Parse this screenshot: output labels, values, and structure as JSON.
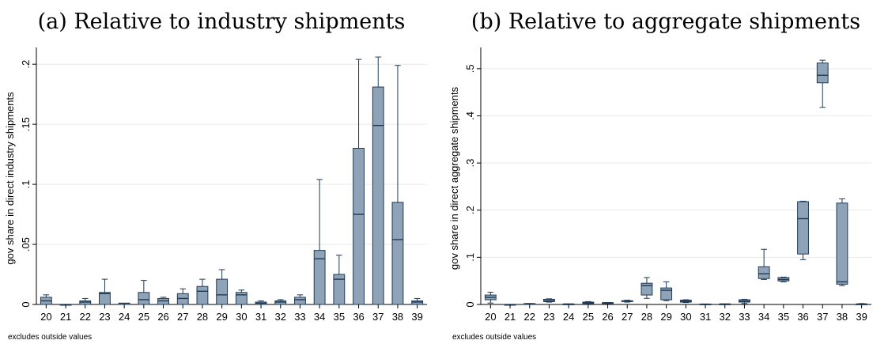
{
  "colors": {
    "box_fill": "#8fa3b8",
    "box_stroke": "#1f3a55",
    "grid": "#e6e9ec",
    "axis": "#000000"
  },
  "chart_data": [
    {
      "type": "box",
      "title": "(a) Relative to industry shipments",
      "xlabel": "",
      "ylabel": "gov share in direct industry shipments",
      "note": "excludes outside values",
      "ylim": [
        0,
        0.21
      ],
      "yticks": [
        0,
        0.05,
        0.1,
        0.15,
        0.2
      ],
      "ytick_labels": [
        "0",
        ".05",
        ".1",
        ".15",
        ".2"
      ],
      "grid": true,
      "categories": [
        "20",
        "21",
        "22",
        "23",
        "24",
        "25",
        "26",
        "27",
        "28",
        "29",
        "30",
        "31",
        "32",
        "33",
        "34",
        "35",
        "36",
        "37",
        "38",
        "39"
      ],
      "boxes": [
        {
          "min": 0,
          "q1": 0,
          "median": 0.003,
          "q3": 0.006,
          "max": 0.008
        },
        {
          "min": 0,
          "q1": 0,
          "median": 0,
          "q3": 0,
          "max": 0
        },
        {
          "min": 0,
          "q1": 0,
          "median": 0.002,
          "q3": 0.003,
          "max": 0.005
        },
        {
          "min": 0,
          "q1": 0,
          "median": 0.009,
          "q3": 0.01,
          "max": 0.021
        },
        {
          "min": 0,
          "q1": 0,
          "median": 0.001,
          "q3": 0.001,
          "max": 0.001
        },
        {
          "min": 0,
          "q1": 0,
          "median": 0.004,
          "q3": 0.01,
          "max": 0.02
        },
        {
          "min": 0,
          "q1": 0,
          "median": 0.003,
          "q3": 0.005,
          "max": 0.006
        },
        {
          "min": 0,
          "q1": 0,
          "median": 0.005,
          "q3": 0.009,
          "max": 0.013
        },
        {
          "min": 0,
          "q1": 0,
          "median": 0.011,
          "q3": 0.015,
          "max": 0.021
        },
        {
          "min": 0,
          "q1": 0,
          "median": 0.008,
          "q3": 0.021,
          "max": 0.029
        },
        {
          "min": 0,
          "q1": 0,
          "median": 0.008,
          "q3": 0.01,
          "max": 0.012
        },
        {
          "min": 0,
          "q1": 0,
          "median": 0.001,
          "q3": 0.002,
          "max": 0.003
        },
        {
          "min": 0,
          "q1": 0,
          "median": 0.002,
          "q3": 0.003,
          "max": 0.004
        },
        {
          "min": 0,
          "q1": 0,
          "median": 0.004,
          "q3": 0.006,
          "max": 0.008
        },
        {
          "min": 0,
          "q1": 0,
          "median": 0.038,
          "q3": 0.045,
          "max": 0.104
        },
        {
          "min": 0,
          "q1": 0,
          "median": 0.021,
          "q3": 0.025,
          "max": 0.041
        },
        {
          "min": 0,
          "q1": 0,
          "median": 0.075,
          "q3": 0.13,
          "max": 0.204
        },
        {
          "min": 0,
          "q1": 0,
          "median": 0.149,
          "q3": 0.181,
          "max": 0.206
        },
        {
          "min": 0,
          "q1": 0,
          "median": 0.054,
          "q3": 0.085,
          "max": 0.199
        },
        {
          "min": 0,
          "q1": 0,
          "median": 0.002,
          "q3": 0.003,
          "max": 0.005
        }
      ]
    },
    {
      "type": "box",
      "title": "(b) Relative to aggregate shipments",
      "xlabel": "",
      "ylabel": "gov share in direct aggregate shipments",
      "note": "excludes outside values",
      "ylim": [
        0,
        0.535
      ],
      "yticks": [
        0,
        0.1,
        0.2,
        0.3,
        0.4,
        0.5
      ],
      "ytick_labels": [
        "0",
        ".1",
        ".2",
        ".3",
        ".4",
        ".5"
      ],
      "grid": true,
      "categories": [
        "20",
        "21",
        "22",
        "23",
        "24",
        "25",
        "26",
        "27",
        "28",
        "29",
        "30",
        "31",
        "32",
        "33",
        "34",
        "35",
        "36",
        "37",
        "38",
        "39"
      ],
      "boxes": [
        {
          "min": 0.003,
          "q1": 0.01,
          "median": 0.015,
          "q3": 0.02,
          "max": 0.026
        },
        {
          "min": 0,
          "q1": 0,
          "median": 0,
          "q3": 0,
          "max": 0
        },
        {
          "min": 0.001,
          "q1": 0.001,
          "median": 0.001,
          "q3": 0.002,
          "max": 0.002
        },
        {
          "min": 0.005,
          "q1": 0.006,
          "median": 0.008,
          "q3": 0.011,
          "max": 0.012
        },
        {
          "min": 0,
          "q1": 0,
          "median": 0.001,
          "q3": 0.001,
          "max": 0.001
        },
        {
          "min": 0.001,
          "q1": 0.002,
          "median": 0.003,
          "q3": 0.005,
          "max": 0.006
        },
        {
          "min": 0.002,
          "q1": 0.002,
          "median": 0.003,
          "q3": 0.004,
          "max": 0.004
        },
        {
          "min": 0.005,
          "q1": 0.006,
          "median": 0.007,
          "q3": 0.008,
          "max": 0.009
        },
        {
          "min": 0.013,
          "q1": 0.02,
          "median": 0.04,
          "q3": 0.045,
          "max": 0.057
        },
        {
          "min": 0.008,
          "q1": 0.01,
          "median": 0.03,
          "q3": 0.035,
          "max": 0.048
        },
        {
          "min": 0.004,
          "q1": 0.005,
          "median": 0.007,
          "q3": 0.009,
          "max": 0.01
        },
        {
          "min": 0,
          "q1": 0,
          "median": 0,
          "q3": 0.001,
          "max": 0.001
        },
        {
          "min": 0,
          "q1": 0.001,
          "median": 0.001,
          "q3": 0.001,
          "max": 0.001
        },
        {
          "min": 0.002,
          "q1": 0.005,
          "median": 0.007,
          "q3": 0.01,
          "max": 0.011
        },
        {
          "min": 0.053,
          "q1": 0.055,
          "median": 0.065,
          "q3": 0.08,
          "max": 0.117
        },
        {
          "min": 0.048,
          "q1": 0.05,
          "median": 0.053,
          "q3": 0.057,
          "max": 0.058
        },
        {
          "min": 0.095,
          "q1": 0.107,
          "median": 0.182,
          "q3": 0.218,
          "max": 0.219
        },
        {
          "min": 0.418,
          "q1": 0.47,
          "median": 0.486,
          "q3": 0.512,
          "max": 0.518
        },
        {
          "min": 0.04,
          "q1": 0.043,
          "median": 0.048,
          "q3": 0.215,
          "max": 0.224
        },
        {
          "min": 0,
          "q1": 0.001,
          "median": 0.001,
          "q3": 0.001,
          "max": 0.002
        }
      ]
    }
  ]
}
